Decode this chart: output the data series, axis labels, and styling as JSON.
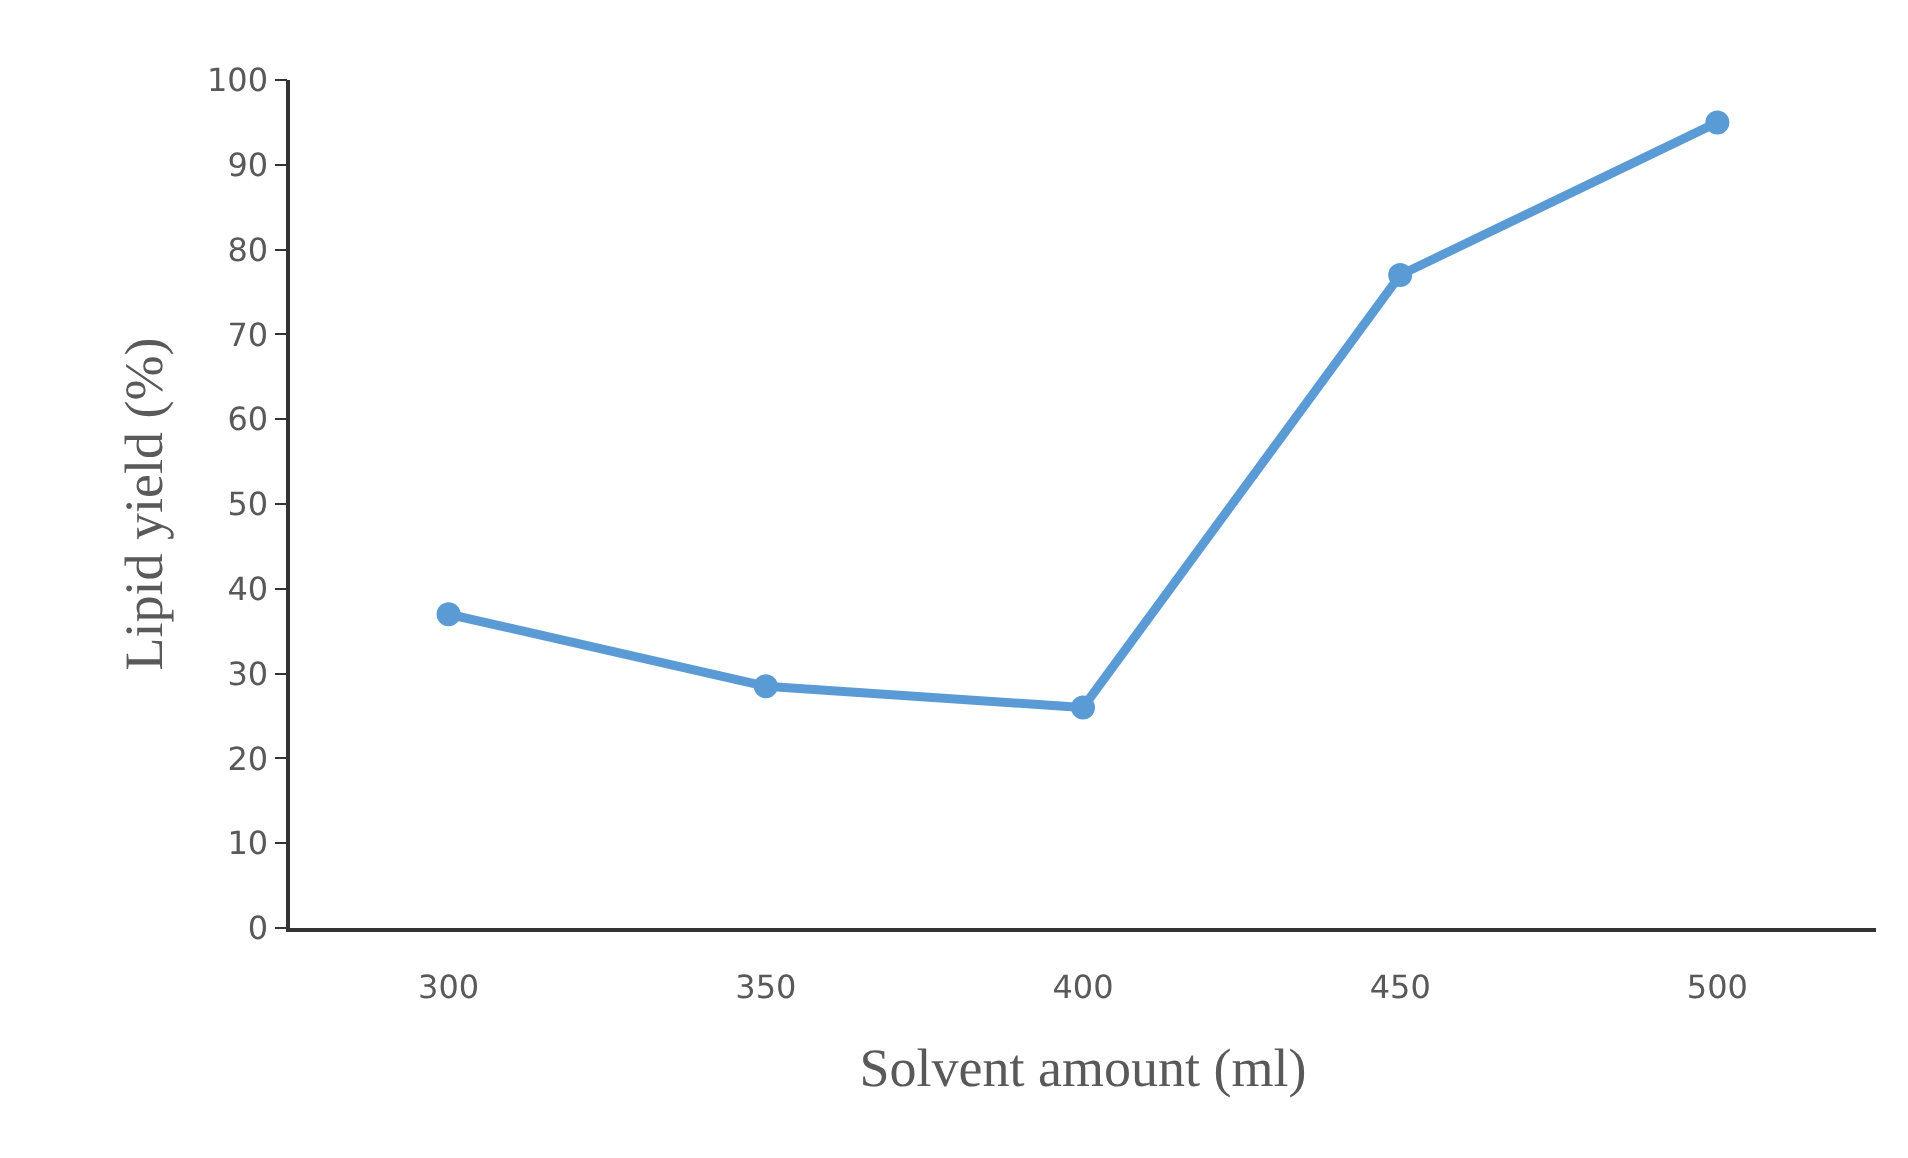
{
  "chart_data": {
    "type": "line",
    "xlabel": "Solvent amount (ml)",
    "ylabel": "Lipid yield (%)",
    "categories": [
      "300",
      "350",
      "400",
      "450",
      "500"
    ],
    "series": [
      {
        "color": "#5b9bd5",
        "values": [
          37,
          28.5,
          26,
          77,
          95
        ]
      }
    ],
    "ylim": [
      0,
      100
    ],
    "yticks": [
      0,
      10,
      20,
      30,
      40,
      50,
      60,
      70,
      80,
      90,
      100
    ],
    "grid": false,
    "legend": false,
    "marker": "circle",
    "line_style": "solid"
  }
}
